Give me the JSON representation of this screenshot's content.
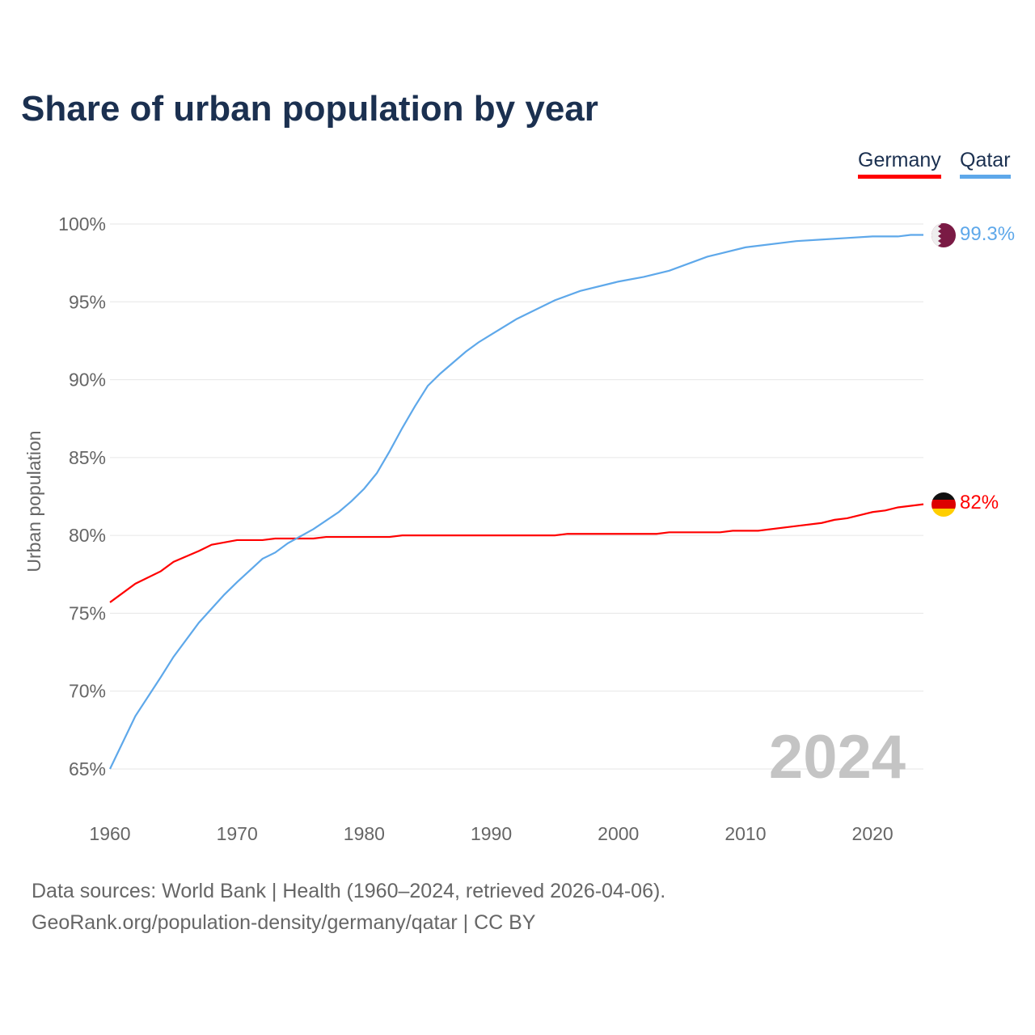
{
  "chart_data": {
    "type": "line",
    "title": "Share of urban population by year",
    "xlabel": "",
    "ylabel": "Urban population",
    "xlim": [
      1960,
      2024
    ],
    "ylim": [
      65,
      100
    ],
    "x_ticks": [
      "1960",
      "1970",
      "1980",
      "1990",
      "2000",
      "2010",
      "2020"
    ],
    "y_ticks": [
      "65%",
      "70%",
      "75%",
      "80%",
      "85%",
      "90%",
      "95%",
      "100%"
    ],
    "grid": true,
    "legend_placement": "top-right",
    "year_marker": "2024",
    "series": [
      {
        "name": "Germany",
        "color": "#ff0000",
        "end_label": "82%",
        "x": [
          1960,
          1962,
          1964,
          1965,
          1967,
          1968,
          1970,
          1972,
          1973,
          1976,
          1977,
          1982,
          1983,
          1995,
          1996,
          2003,
          2004,
          2008,
          2009,
          2011,
          2014,
          2016,
          2017,
          2018,
          2020,
          2021,
          2022,
          2024
        ],
        "y": [
          75.7,
          76.9,
          77.7,
          78.3,
          79.0,
          79.4,
          79.7,
          79.7,
          79.8,
          79.8,
          79.9,
          79.9,
          80.0,
          80.0,
          80.1,
          80.1,
          80.2,
          80.2,
          80.3,
          80.3,
          80.6,
          80.8,
          81.0,
          81.1,
          81.5,
          81.6,
          81.8,
          82.0
        ]
      },
      {
        "name": "Qatar",
        "color": "#5ea8ea",
        "end_label": "99.3%",
        "x": [
          1960,
          1962,
          1964,
          1965,
          1967,
          1969,
          1970,
          1972,
          1973,
          1974,
          1976,
          1978,
          1979,
          1980,
          1981,
          1982,
          1983,
          1984,
          1985,
          1986,
          1988,
          1989,
          1990,
          1992,
          1995,
          1997,
          2000,
          2002,
          2004,
          2007,
          2010,
          2014,
          2016,
          2018,
          2020,
          2022,
          2023,
          2024
        ],
        "y": [
          65.0,
          68.4,
          70.9,
          72.2,
          74.4,
          76.2,
          77.0,
          78.5,
          78.9,
          79.5,
          80.4,
          81.5,
          82.2,
          83.0,
          84.0,
          85.4,
          86.9,
          88.3,
          89.6,
          90.4,
          91.8,
          92.4,
          92.9,
          93.9,
          95.1,
          95.7,
          96.3,
          96.6,
          97.0,
          97.9,
          98.5,
          98.9,
          99.0,
          99.1,
          99.2,
          99.2,
          99.3,
          99.3
        ]
      }
    ]
  },
  "footer": {
    "line1": "Data sources: World Bank | Health (1960–2024, retrieved 2026-04-06).",
    "line2": "GeoRank.org/population-density/germany/qatar | CC BY"
  }
}
